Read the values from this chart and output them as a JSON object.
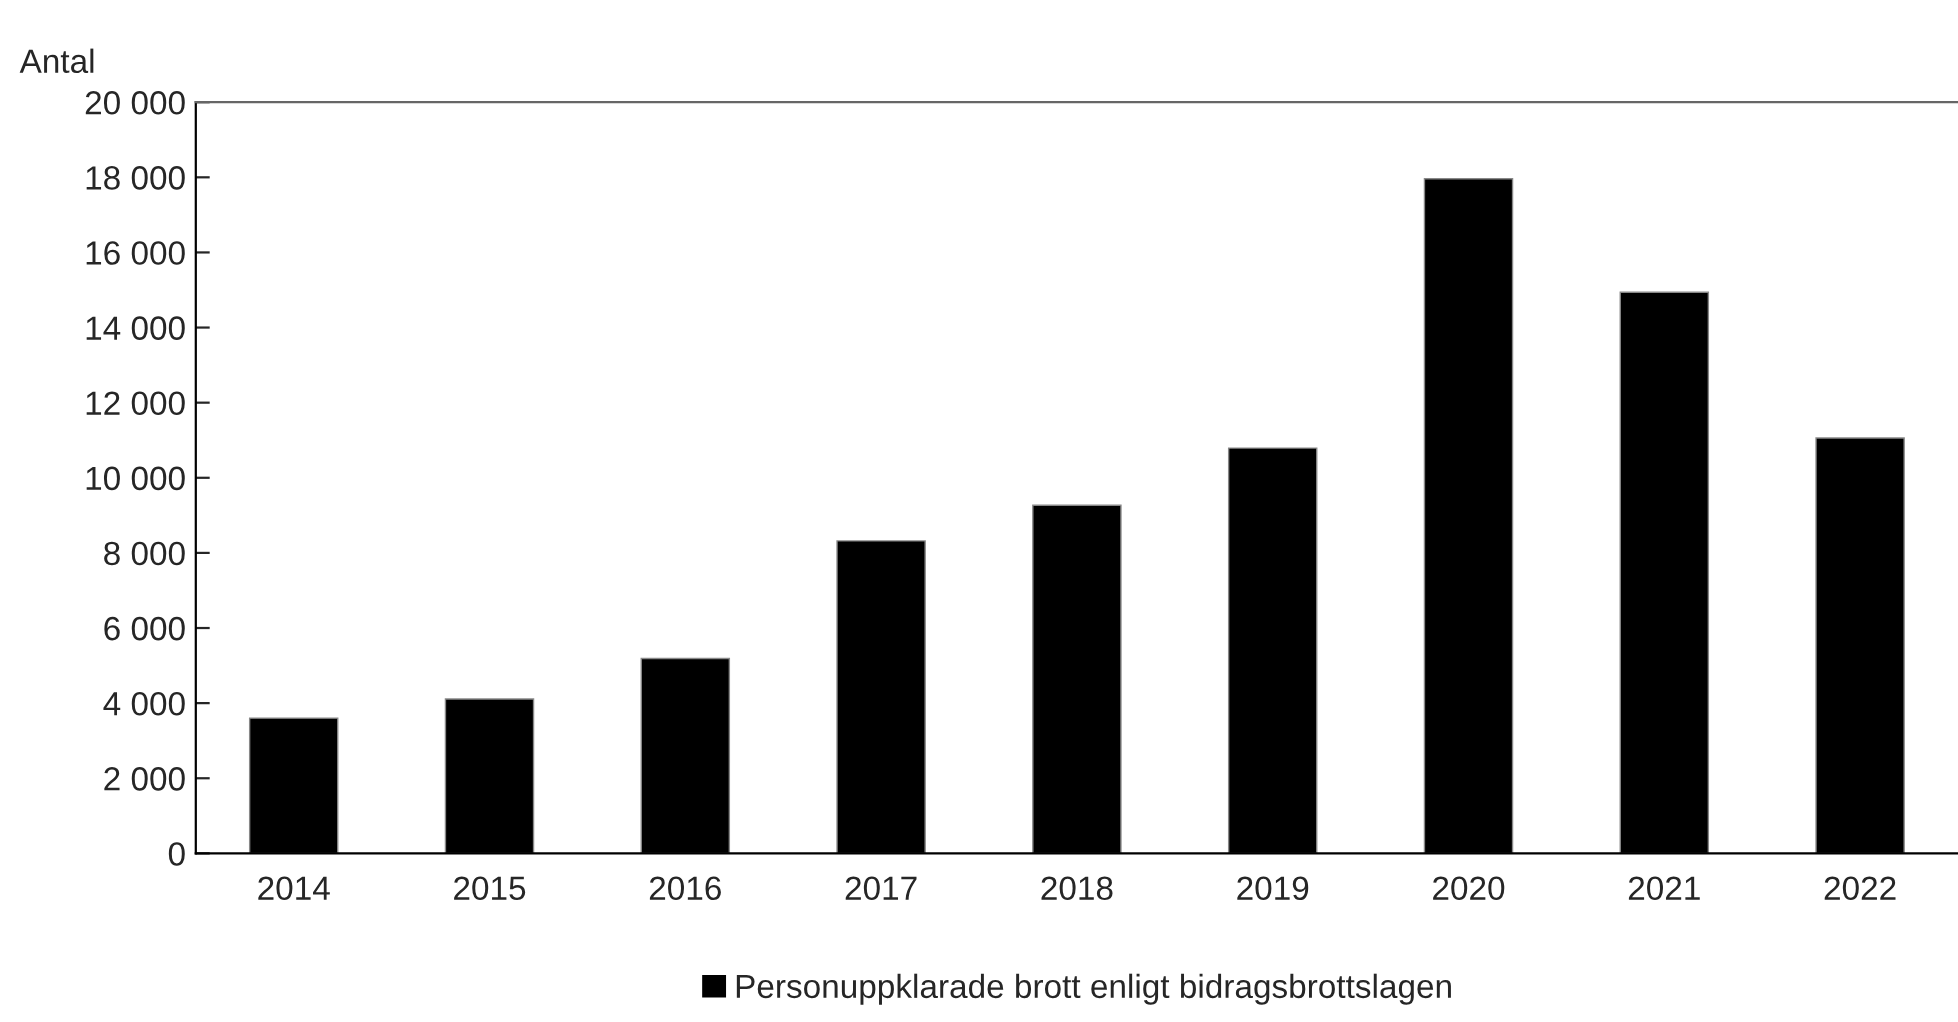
{
  "chart_data": {
    "type": "bar",
    "ylabel": "Antal",
    "categories": [
      "2014",
      "2015",
      "2016",
      "2017",
      "2018",
      "2019",
      "2020",
      "2021",
      "2022"
    ],
    "series": [
      {
        "name": "Personuppklarade brott enligt bidragsbrottslagen",
        "color": "#000000",
        "values": [
          3600,
          4110,
          5190,
          8320,
          9270,
          10790,
          17960,
          14940,
          11060
        ]
      }
    ],
    "ylim": [
      0,
      20000
    ],
    "yticks": [
      {
        "value": 0,
        "label": "0"
      },
      {
        "value": 2000,
        "label": "2 000"
      },
      {
        "value": 4000,
        "label": "4 000"
      },
      {
        "value": 6000,
        "label": "6 000"
      },
      {
        "value": 8000,
        "label": "8 000"
      },
      {
        "value": 10000,
        "label": "10 000"
      },
      {
        "value": 12000,
        "label": "12 000"
      },
      {
        "value": 14000,
        "label": "14 000"
      },
      {
        "value": 16000,
        "label": "16 000"
      },
      {
        "value": 18000,
        "label": "18 000"
      },
      {
        "value": 20000,
        "label": "20 000"
      }
    ],
    "grid": false,
    "legend": "bottom"
  }
}
